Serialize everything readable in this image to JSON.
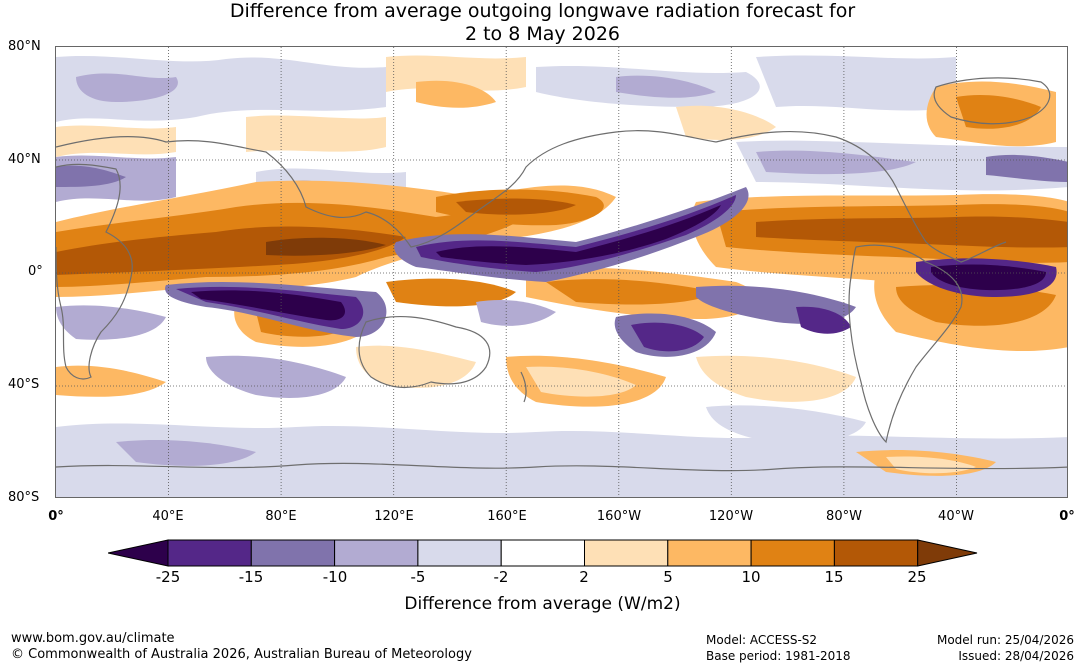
{
  "title": {
    "line1": "Difference from average outgoing longwave radiation forecast for",
    "line2": "2 to 8 May 2026"
  },
  "axes": {
    "lat_labels": [
      "80°N",
      "40°N",
      "0°",
      "40°S",
      "80°S"
    ],
    "lon_labels": [
      "0°",
      "40°E",
      "80°E",
      "120°E",
      "160°E",
      "160°W",
      "120°W",
      "80°W",
      "40°W",
      "0°"
    ]
  },
  "colorbar": {
    "title": "Difference from average (W/m2)",
    "ticks": [
      "-25",
      "-15",
      "-10",
      "-5",
      "-2",
      "2",
      "5",
      "10",
      "15",
      "25"
    ],
    "bins": [
      {
        "range": "< -25",
        "color": "#2d004b"
      },
      {
        "range": "-25 to -15",
        "color": "#542788"
      },
      {
        "range": "-15 to -10",
        "color": "#8073ac"
      },
      {
        "range": "-10 to -5",
        "color": "#b2abd2"
      },
      {
        "range": "-5 to -2",
        "color": "#d8daeb"
      },
      {
        "range": "-2 to 2",
        "color": "#ffffff"
      },
      {
        "range": "2 to 5",
        "color": "#fee0b6"
      },
      {
        "range": "5 to 10",
        "color": "#fdb863"
      },
      {
        "range": "10 to 15",
        "color": "#e08214"
      },
      {
        "range": "15 to 25",
        "color": "#b35806"
      },
      {
        "range": "> 25",
        "color": "#7f3b08"
      }
    ]
  },
  "footer": {
    "url": "www.bom.gov.au/climate",
    "copyright": "© Commonwealth of Australia 2026, Australian Bureau of Meteorology",
    "model": "Model: ACCESS-S2",
    "base_period": "Base period: 1981-2018",
    "model_run": "Model run: 25/04/2026",
    "issued": "Issued: 28/04/2026"
  }
}
